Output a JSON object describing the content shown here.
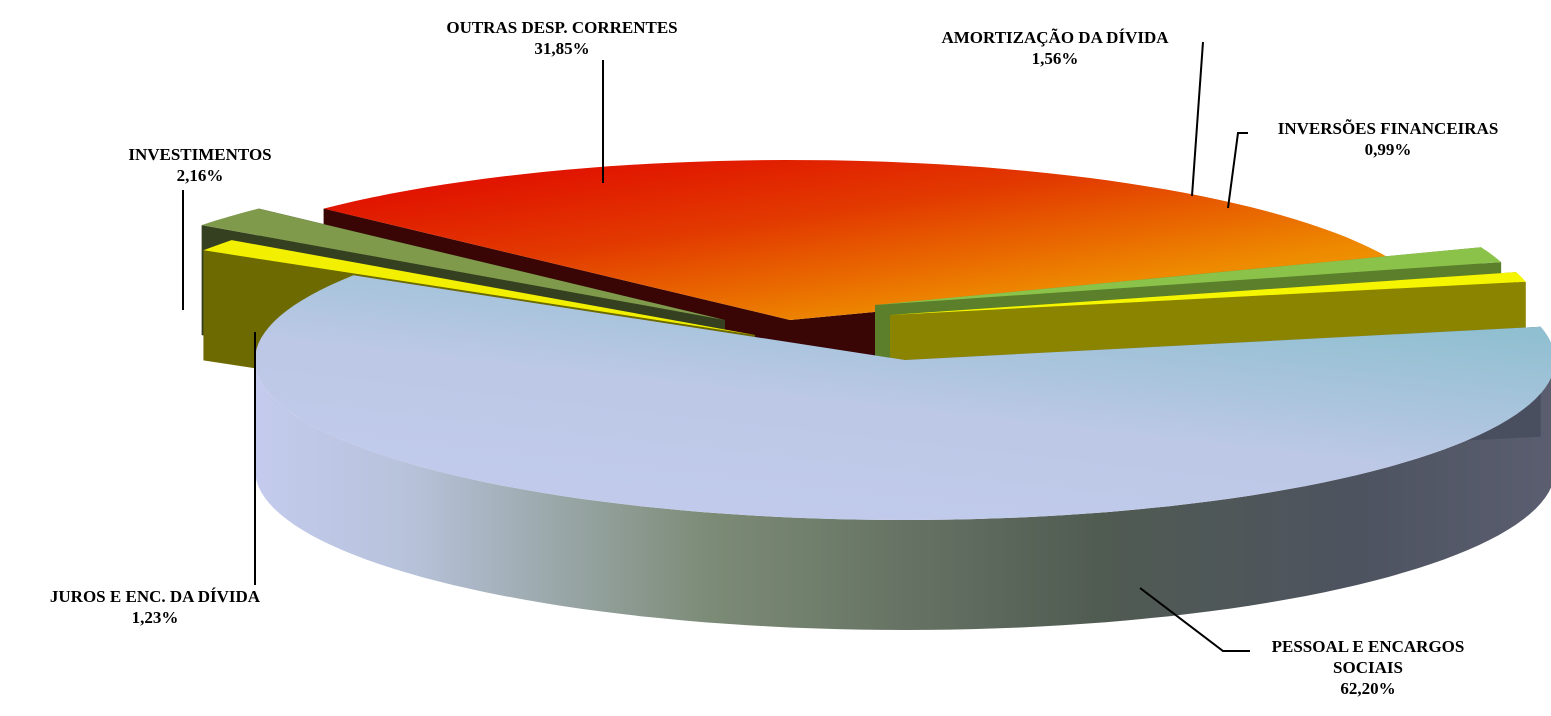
{
  "chart_data": {
    "type": "pie",
    "title": "",
    "slices": [
      {
        "name": "PESSOAL E ENCARGOS SOCIAIS",
        "label_line1": "PESSOAL E ENCARGOS",
        "label_line2": "SOCIAIS",
        "value": 62.2,
        "display": "62,20%"
      },
      {
        "name": "JUROS E ENC. DA DÍVIDA",
        "label_line1": "JUROS E ENC. DA DÍVIDA",
        "value": 1.23,
        "display": "1,23%"
      },
      {
        "name": "INVESTIMENTOS",
        "label_line1": "INVESTIMENTOS",
        "value": 2.16,
        "display": "2,16%"
      },
      {
        "name": "OUTRAS DESP. CORRENTES",
        "label_line1": "OUTRAS DESP. CORRENTES",
        "value": 31.85,
        "display": "31,85%"
      },
      {
        "name": "AMORTIZAÇÃO DA DÍVIDA",
        "label_line1": "AMORTIZAÇÃO DA DÍVIDA",
        "value": 1.56,
        "display": "1,56%"
      },
      {
        "name": "INVERSÕES FINANCEIRAS",
        "label_line1": "INVERSÕES FINANCEIRAS",
        "value": 0.99,
        "display": "0,99%"
      }
    ],
    "colors": {
      "pessoal": "#c3cdea",
      "juros": "#f2f000",
      "investimentos": "#7f9a4a",
      "outras": "#e22000",
      "amortizacao": "#8bc34a",
      "inversoes": "#f5f500"
    },
    "legend": "none",
    "style": "3d-exploded"
  }
}
